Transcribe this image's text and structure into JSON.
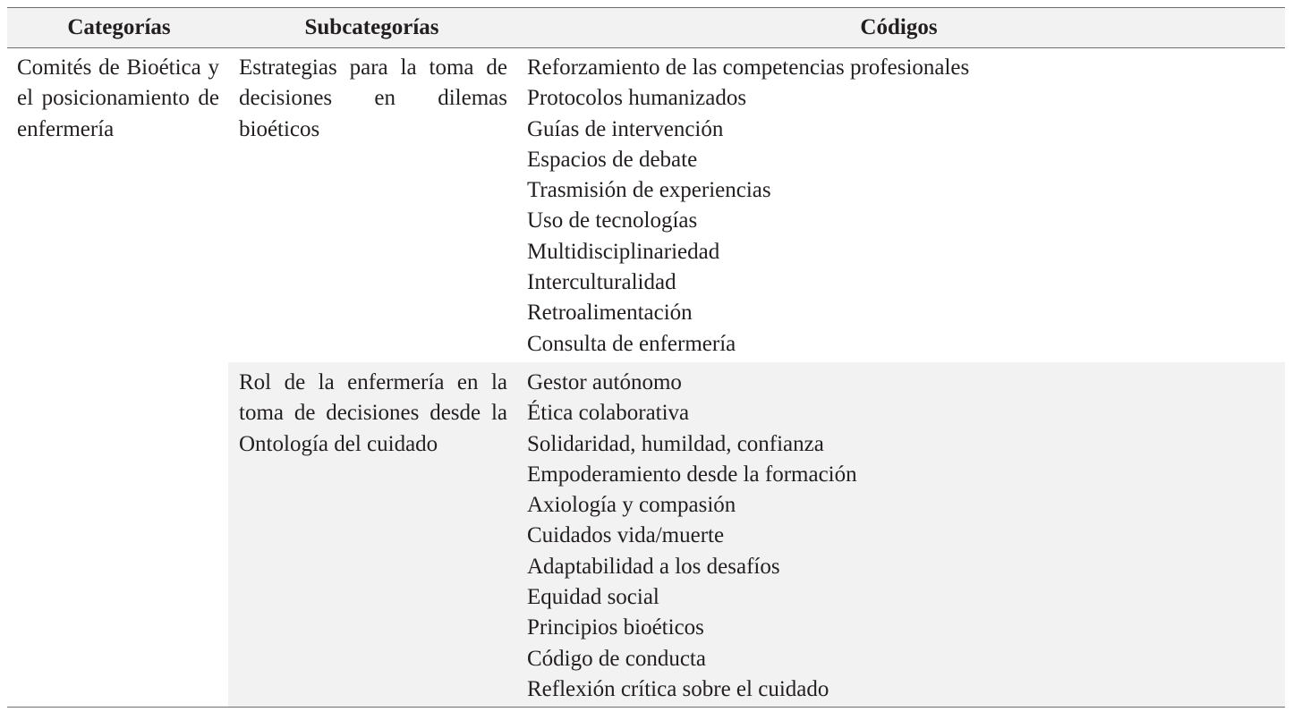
{
  "headers": {
    "categorias": "Categorías",
    "subcategorias": "Subcategorías",
    "codigos": "Códigos"
  },
  "rows": [
    {
      "categoria": "Comités de Bioéti­ca y el posicionam­iento de enfermería",
      "groups": [
        {
          "subcategoria": "Estrategias para la toma de decisiones en dilemas bioéticos",
          "codigos": [
            "Reforzamiento de las competencias profesionales",
            "Protocolos humanizados",
            "Guías de intervención",
            "Espacios de debate",
            "Trasmisión de experiencias",
            "Uso de tecnologías",
            "Multidisciplinariedad",
            "Interculturalidad",
            "Retroalimentación",
            "Consulta de enfermería"
          ]
        },
        {
          "subcategoria": "Rol de la enfermería en la toma de decisiones desde la Ontología del cuidado",
          "codigos": [
            "Gestor autónomo",
            "Ética colaborativa",
            "Solidaridad, humildad, confianza",
            "Empoderamiento desde la formación",
            "Axiología y compasión",
            "Cuidados vida/muerte",
            "Adaptabilidad a los desafíos",
            "Equidad social",
            "Principios bioéticos",
            "Código de conducta",
            "Reflexión crítica sobre el cuidado"
          ]
        }
      ]
    }
  ]
}
